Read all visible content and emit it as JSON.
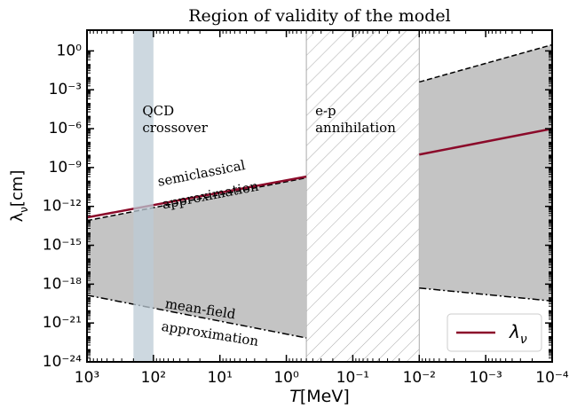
{
  "chart_data": {
    "type": "line",
    "title": "Region of validity of the model",
    "xlabel": {
      "symbol": "T",
      "unit": "[MeV]"
    },
    "ylabel": {
      "symbol": "λ",
      "sub": "ν",
      "unit": "[cm]"
    },
    "xscale": "log",
    "yscale": "log",
    "xlim": [
      1000,
      0.0001
    ],
    "ylim": [
      1e-24,
      40
    ],
    "xticks": [
      {
        "value": 1000,
        "label": "10³"
      },
      {
        "value": 100,
        "label": "10²"
      },
      {
        "value": 10,
        "label": "10¹"
      },
      {
        "value": 1,
        "label": "10⁰"
      },
      {
        "value": 0.1,
        "label": "10⁻¹"
      },
      {
        "value": 0.01,
        "label": "10⁻²"
      },
      {
        "value": 0.001,
        "label": "10⁻³"
      },
      {
        "value": 0.0001,
        "label": "10⁻⁴"
      }
    ],
    "yticks": [
      {
        "value": 1e-24,
        "label": "10⁻²⁴"
      },
      {
        "value": 1e-21,
        "label": "10⁻²¹"
      },
      {
        "value": 1e-18,
        "label": "10⁻¹⁸"
      },
      {
        "value": 1e-15,
        "label": "10⁻¹⁵"
      },
      {
        "value": 1e-12,
        "label": "10⁻¹²"
      },
      {
        "value": 1e-09,
        "label": "10⁻⁹"
      },
      {
        "value": 1e-06,
        "label": "10⁻⁶"
      },
      {
        "value": 0.001,
        "label": "10⁻³"
      },
      {
        "value": 1,
        "label": "10⁰"
      }
    ],
    "line_color": "#8b0a2a",
    "region_color": "#c4c4c4",
    "regions": [
      {
        "x": [
          1000,
          0.5
        ],
        "upper": [
          8e-14,
          1.6e-10
        ],
        "lower": [
          1.4e-19,
          7e-23
        ],
        "lambda": [
          1.4e-13,
          2e-10
        ]
      },
      {
        "x": [
          0.01,
          0.0001
        ],
        "upper": [
          0.004,
          3
        ],
        "lower": [
          5e-19,
          5e-20
        ],
        "lambda": [
          1e-08,
          1e-06
        ]
      }
    ],
    "bands": [
      {
        "x": [
          200,
          100
        ],
        "color": "#bccbd6",
        "style": "solid",
        "label": [
          "QCD",
          "crossover"
        ]
      },
      {
        "x": [
          0.5,
          0.01
        ],
        "color": "#aaaaaa",
        "style": "hatch",
        "label": [
          "e-p",
          "annihilation"
        ]
      }
    ],
    "annotations": [
      {
        "lines": [
          "semiclassical",
          "approximation"
        ]
      },
      {
        "lines": [
          "mean-field",
          "approximation"
        ]
      }
    ],
    "legend": {
      "symbol": "λ",
      "sub": "ν",
      "position": "lower right"
    }
  }
}
